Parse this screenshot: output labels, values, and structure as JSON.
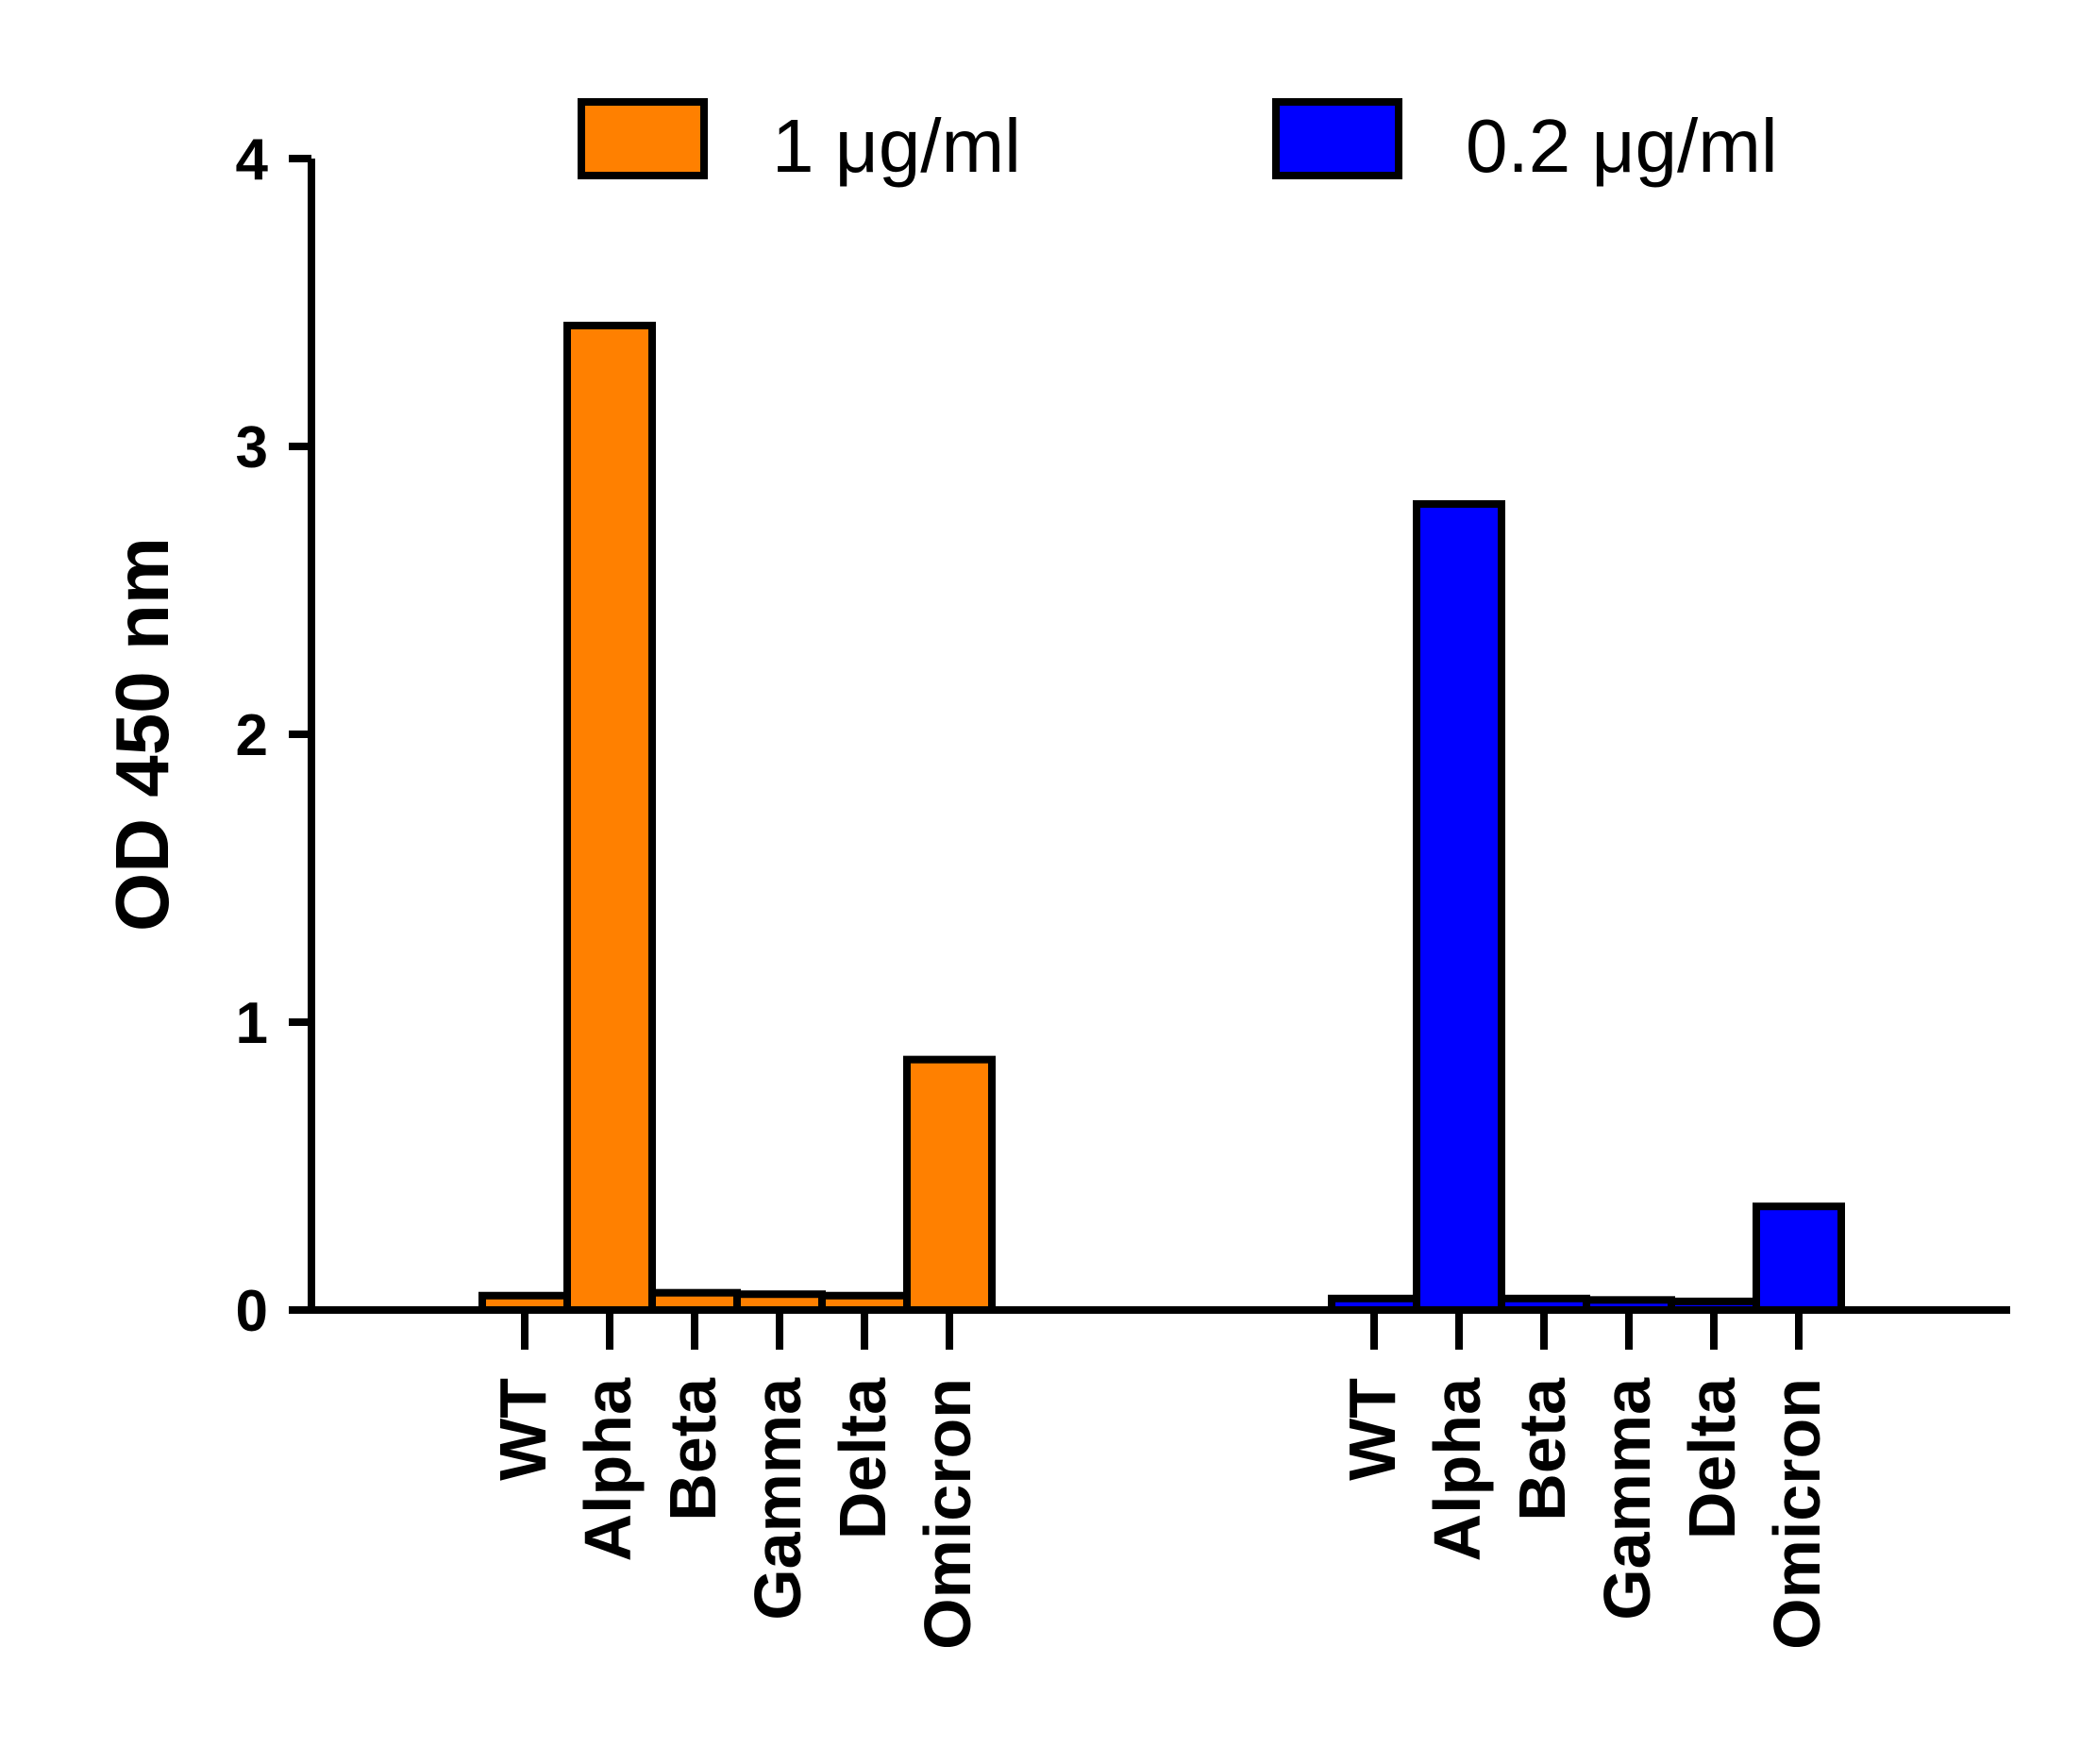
{
  "chart_data": {
    "type": "bar",
    "ylabel": "OD 450 nm",
    "xlabel": "",
    "ylim": [
      0,
      4
    ],
    "yticks": [
      "0",
      "1",
      "2",
      "3",
      "4"
    ],
    "legend_position": "top",
    "groups": [
      {
        "name": "1 μg/ml",
        "color": "#ff8000",
        "categories": [
          "WT",
          "Alpha",
          "Beta",
          "Gamma",
          "Delta",
          "Omicron"
        ],
        "values": [
          0.05,
          3.42,
          0.06,
          0.055,
          0.05,
          0.87
        ]
      },
      {
        "name": "0.2 μg/ml",
        "color": "#0000ff",
        "categories": [
          "WT",
          "Alpha",
          "Beta",
          "Gamma",
          "Delta",
          "Omicron"
        ],
        "values": [
          0.04,
          2.8,
          0.04,
          0.035,
          0.03,
          0.36
        ]
      }
    ]
  }
}
